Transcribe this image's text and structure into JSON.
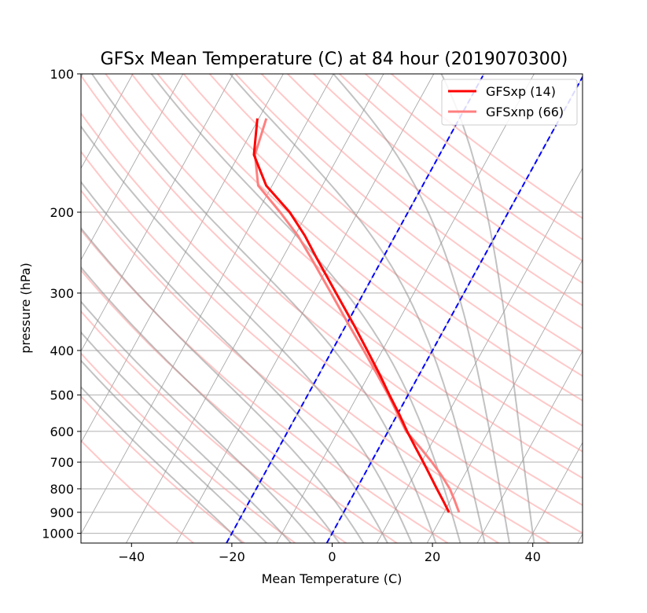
{
  "chart_data": {
    "type": "line",
    "title": "GFSx Mean Temperature (C) at 84 hour  (2019070300)",
    "xlabel": "Mean Temperature (C)",
    "ylabel": "pressure (hPa)",
    "xlim": [
      -50,
      50
    ],
    "ylim": [
      1050,
      100
    ],
    "y_scale": "log",
    "skew": "skew-T log-P",
    "x_ticks": [
      -40,
      -20,
      0,
      20,
      40
    ],
    "x_tick_labels": [
      "−40",
      "−20",
      "0",
      "20",
      "40"
    ],
    "y_ticks": [
      100,
      200,
      300,
      400,
      500,
      600,
      700,
      800,
      900,
      1000
    ],
    "y_tick_labels": [
      "100",
      "200",
      "300",
      "400",
      "500",
      "600",
      "700",
      "800",
      "900",
      "1000"
    ],
    "grid": true,
    "legend_position": "top-right",
    "series": [
      {
        "name": "GFSxp (14)",
        "color": "#ff0000",
        "points": [
          {
            "p": 900,
            "t": 21.0
          },
          {
            "p": 850,
            "t": 18.6
          },
          {
            "p": 800,
            "t": 16.0
          },
          {
            "p": 750,
            "t": 13.3
          },
          {
            "p": 700,
            "t": 10.4
          },
          {
            "p": 650,
            "t": 7.2
          },
          {
            "p": 600,
            "t": 3.8
          },
          {
            "p": 550,
            "t": 0.3
          },
          {
            "p": 500,
            "t": -3.7
          },
          {
            "p": 450,
            "t": -8.0
          },
          {
            "p": 400,
            "t": -13.0
          },
          {
            "p": 350,
            "t": -18.7
          },
          {
            "p": 300,
            "t": -25.5
          },
          {
            "p": 250,
            "t": -33.5
          },
          {
            "p": 225,
            "t": -38.0
          },
          {
            "p": 200,
            "t": -43.6
          },
          {
            "p": 175,
            "t": -51.2
          },
          {
            "p": 150,
            "t": -57.0
          },
          {
            "p": 125,
            "t": -60.3
          }
        ]
      },
      {
        "name": "GFSxnp (66)",
        "color": "#ff7f7f",
        "points": [
          {
            "p": 900,
            "t": 23.0
          },
          {
            "p": 850,
            "t": 20.9
          },
          {
            "p": 800,
            "t": 18.6
          },
          {
            "p": 750,
            "t": 15.6
          },
          {
            "p": 700,
            "t": 12.1
          },
          {
            "p": 650,
            "t": 8.1
          },
          {
            "p": 600,
            "t": 3.6
          },
          {
            "p": 550,
            "t": 0.0
          },
          {
            "p": 500,
            "t": -3.9
          },
          {
            "p": 450,
            "t": -8.5
          },
          {
            "p": 400,
            "t": -13.7
          },
          {
            "p": 350,
            "t": -19.7
          },
          {
            "p": 300,
            "t": -26.5
          },
          {
            "p": 250,
            "t": -34.6
          },
          {
            "p": 225,
            "t": -39.4
          },
          {
            "p": 200,
            "t": -45.5
          },
          {
            "p": 175,
            "t": -52.8
          },
          {
            "p": 150,
            "t": -56.8
          },
          {
            "p": 125,
            "t": -58.5
          }
        ]
      }
    ],
    "reference_lines": [
      {
        "kind": "isotherm",
        "t": 0,
        "color": "#0000ff",
        "style": "dashed"
      },
      {
        "kind": "isotherm",
        "t": -20,
        "color": "#0000ff",
        "style": "dashed"
      }
    ]
  }
}
